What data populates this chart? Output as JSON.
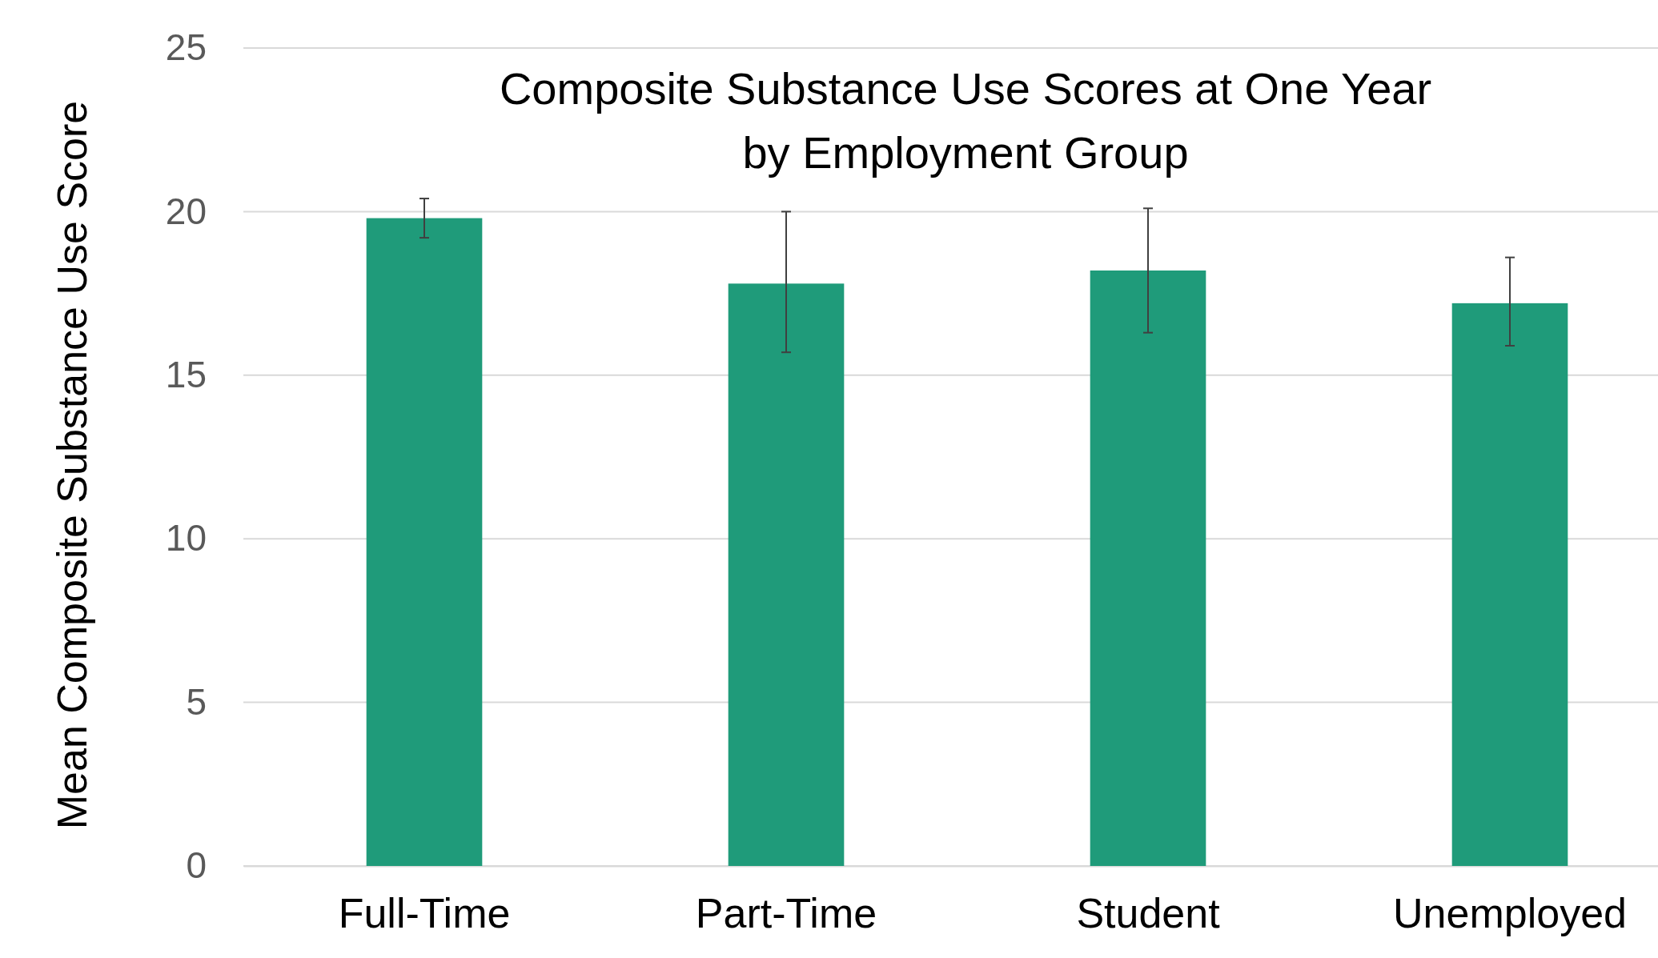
{
  "chart_data": {
    "type": "bar",
    "title": "Composite Substance Use Scores at One Year\nby Employment Group",
    "ylabel": "Mean Composite Substance Use Score",
    "categories": [
      "Full-Time",
      "Part-Time",
      "Student",
      "Unemployed"
    ],
    "series": [
      {
        "color": "#1f9b7a",
        "values": [
          19.8,
          17.8,
          18.2,
          17.2
        ],
        "errors": [
          [
            19.2,
            20.4
          ],
          [
            15.7,
            20.0
          ],
          [
            16.3,
            20.1
          ],
          [
            15.9,
            18.6
          ]
        ]
      }
    ],
    "ylim": [
      0,
      25
    ],
    "yticks": [
      0,
      5,
      10,
      15,
      20,
      25
    ],
    "grid": "y"
  }
}
